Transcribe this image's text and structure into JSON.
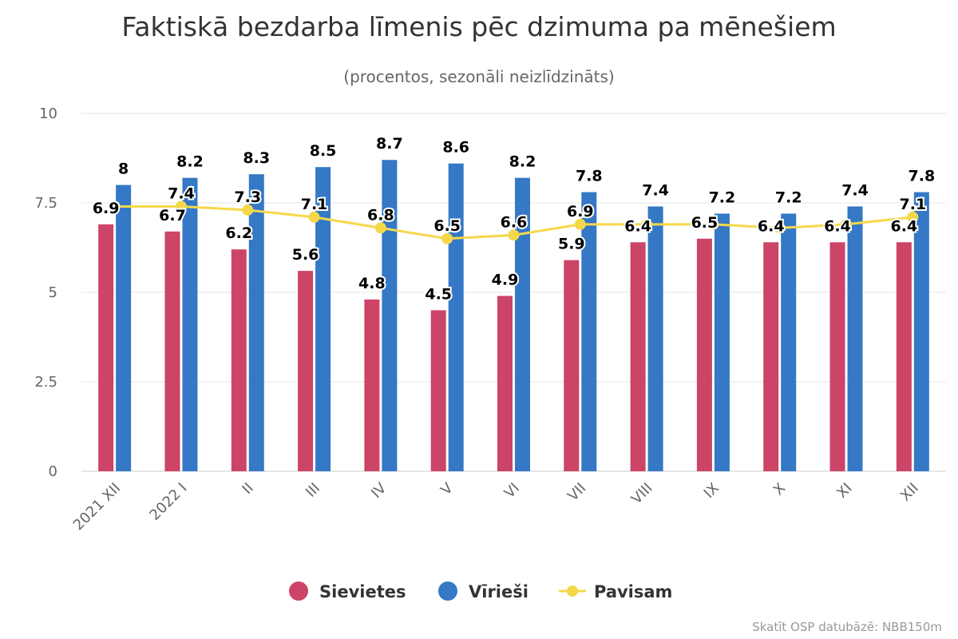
{
  "chart_data": {
    "type": "bar",
    "title": "Faktiskā bezdarba līmenis pēc dzimuma pa mēnešiem",
    "subtitle": "(procentos, sezonāli neizlīdzināts)",
    "credit": "Skatīt OSP datubāzē: NBB150m",
    "categories": [
      "2021 XII",
      "2022 I",
      "II",
      "III",
      "IV",
      "V",
      "VI",
      "VII",
      "VIII",
      "IX",
      "X",
      "XI",
      "XII"
    ],
    "ylim": [
      0,
      10
    ],
    "yticks": [
      "0",
      "2.5",
      "5",
      "7.5",
      "10"
    ],
    "ytick_values": [
      0,
      2.5,
      5,
      7.5,
      10
    ],
    "grid": true,
    "legend_position": "bottom",
    "series": [
      {
        "name": "Sievietes",
        "type": "bar",
        "color": "#cc4466",
        "values": [
          6.9,
          6.7,
          6.2,
          5.6,
          4.8,
          4.5,
          4.9,
          5.9,
          6.4,
          6.5,
          6.4,
          6.4,
          6.4
        ]
      },
      {
        "name": "Vīrieši",
        "type": "bar",
        "color": "#3478c6",
        "values": [
          8,
          8.2,
          8.3,
          8.5,
          8.7,
          8.6,
          8.2,
          7.8,
          7.4,
          7.2,
          7.2,
          7.4,
          7.8
        ]
      },
      {
        "name": "Pavisam",
        "type": "line",
        "color": "#f5d84a",
        "values": [
          7.4,
          7.4,
          7.3,
          7.1,
          6.8,
          6.5,
          6.6,
          6.9,
          6.9,
          6.9,
          6.8,
          6.9,
          7.1
        ],
        "labeled": [
          false,
          true,
          true,
          true,
          true,
          true,
          true,
          true,
          false,
          false,
          false,
          false,
          true
        ]
      }
    ]
  }
}
